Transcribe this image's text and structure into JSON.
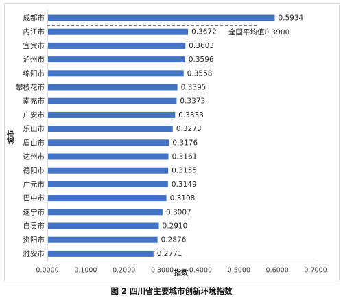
{
  "caption": "图 2 四川省主要城市创新环境指数",
  "chart_data": {
    "type": "bar",
    "orientation": "horizontal",
    "xlabel": "指数",
    "ylabel": "城市",
    "xlim": [
      0,
      0.7
    ],
    "xticks": [
      "0.0000",
      "0.1000",
      "0.2000",
      "0.3000",
      "0.4000",
      "0.5000",
      "0.6000",
      "0.7000"
    ],
    "grid": false,
    "color": "#4472c4",
    "categories": [
      "成都市",
      "内江市",
      "宜宾市",
      "泸州市",
      "绵阳市",
      "攀枝花市",
      "南充市",
      "广安市",
      "乐山市",
      "眉山市",
      "达州市",
      "德阳市",
      "广元市",
      "巴中市",
      "遂宁市",
      "自贡市",
      "资阳市",
      "雅安市"
    ],
    "values": [
      0.5934,
      0.3672,
      0.3603,
      0.3596,
      0.3558,
      0.3395,
      0.3373,
      0.3333,
      0.3273,
      0.3176,
      0.3161,
      0.3155,
      0.3149,
      0.3108,
      0.3007,
      0.291,
      0.2876,
      0.2771
    ],
    "value_labels": [
      "0.5934",
      "0.3672",
      "0.3603",
      "0.3596",
      "0.3558",
      "0.3395",
      "0.3373",
      "0.3333",
      "0.3273",
      "0.3176",
      "0.3161",
      "0.3155",
      "0.3149",
      "0.3108",
      "0.3007",
      "0.2910",
      "0.2876",
      "0.2771"
    ],
    "annotation": {
      "text": "全国平均值0.3900",
      "style": "dashed-line"
    }
  }
}
